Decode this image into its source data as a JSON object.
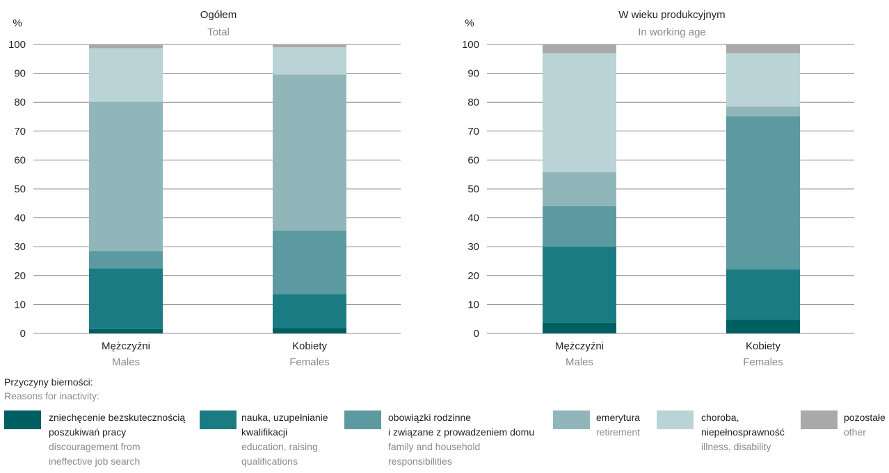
{
  "colors": {
    "discouragement": "#005f63",
    "education": "#1a7c82",
    "family": "#5c9aa1",
    "retirement": "#90b6ba",
    "illness": "#b9d3d6",
    "other": "#a8a9ab"
  },
  "chart_data": [
    {
      "type": "bar",
      "stacked": true,
      "title": "Ogółem",
      "subtitle": "Total",
      "ylabel": "%",
      "ylim": [
        0,
        100
      ],
      "yticks": [
        0,
        10,
        20,
        30,
        40,
        50,
        60,
        70,
        80,
        90,
        100
      ],
      "grid": true,
      "categories": [
        {
          "pl": "Mężczyźni",
          "en": "Males"
        },
        {
          "pl": "Kobiety",
          "en": "Females"
        }
      ],
      "series": [
        {
          "key": "discouragement",
          "values": [
            1.5,
            1.8
          ]
        },
        {
          "key": "education",
          "values": [
            21.0,
            11.8
          ]
        },
        {
          "key": "family",
          "values": [
            6.0,
            22.0
          ]
        },
        {
          "key": "retirement",
          "values": [
            51.7,
            54.0
          ]
        },
        {
          "key": "illness",
          "values": [
            18.5,
            9.4
          ]
        },
        {
          "key": "other",
          "values": [
            1.3,
            1.0
          ]
        }
      ]
    },
    {
      "type": "bar",
      "stacked": true,
      "title": "W wieku produkcyjnym",
      "subtitle": "In working age",
      "ylabel": "%",
      "ylim": [
        0,
        100
      ],
      "yticks": [
        0,
        10,
        20,
        30,
        40,
        50,
        60,
        70,
        80,
        90,
        100
      ],
      "grid": true,
      "categories": [
        {
          "pl": "Mężczyźni",
          "en": "Males"
        },
        {
          "pl": "Kobiety",
          "en": "Females"
        }
      ],
      "series": [
        {
          "key": "discouragement",
          "values": [
            3.7,
            4.7
          ]
        },
        {
          "key": "education",
          "values": [
            26.3,
            17.5
          ]
        },
        {
          "key": "family",
          "values": [
            14.0,
            53.0
          ]
        },
        {
          "key": "retirement",
          "values": [
            11.8,
            3.3
          ]
        },
        {
          "key": "illness",
          "values": [
            41.2,
            18.5
          ]
        },
        {
          "key": "other",
          "values": [
            3.0,
            3.0
          ]
        }
      ]
    }
  ],
  "legend": {
    "heading_pl": "Przyczyny bierności:",
    "heading_en": "Reasons for inactivity:",
    "items": [
      {
        "key": "discouragement",
        "pl1": "zniechęcenie bezskutecznością",
        "pl2": "poszukiwań pracy",
        "en1": "discouragement from",
        "en2": "ineffective job search"
      },
      {
        "key": "education",
        "pl1": "nauka, uzupełnianie",
        "pl2": "kwalifikacji",
        "en1": "education, raising",
        "en2": "qualifications"
      },
      {
        "key": "family",
        "pl1": "obowiązki rodzinne",
        "pl2": "i związane z prowadzeniem domu",
        "en1": "family and household",
        "en2": "responsibilities"
      },
      {
        "key": "retirement",
        "pl1": "emerytura",
        "pl2": "",
        "en1": "retirement",
        "en2": ""
      },
      {
        "key": "illness",
        "pl1": "choroba,",
        "pl2": "niepełnosprawność",
        "en1": "illness, disability",
        "en2": ""
      },
      {
        "key": "other",
        "pl1": "pozostałe",
        "pl2": "",
        "en1": "other",
        "en2": ""
      }
    ]
  }
}
